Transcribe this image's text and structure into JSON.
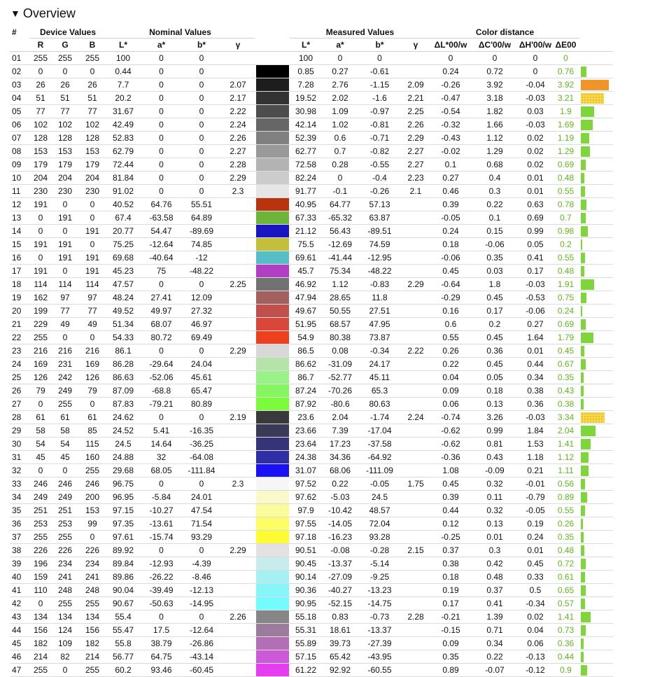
{
  "section": {
    "title": "Overview",
    "toggle_glyph": "▼"
  },
  "headers": {
    "index": "#",
    "device": "Device Values",
    "nominal": "Nominal Values",
    "measured": "Measured Values",
    "distance": "Color distance",
    "R": "R",
    "G": "G",
    "B": "B",
    "L": "L*",
    "a": "a*",
    "b": "b*",
    "gamma": "γ",
    "dL": "ΔL*00/w",
    "dC": "ΔC'00/w",
    "dH": "ΔH'00/w",
    "dE": "ΔE00"
  },
  "status_colors": {
    "green": "#5fb81e",
    "orange": "#f0952a",
    "yellow": "#f4d84a"
  },
  "rows": [
    {
      "id": "01",
      "R": "255",
      "G": "255",
      "B": "255",
      "nL": "100",
      "na": "0",
      "nb": "0",
      "ng": "",
      "sw": "#ffffff",
      "mL": "100",
      "ma": "0",
      "mb": "0",
      "mg": "",
      "dL": "0",
      "dC": "0",
      "dH": "0",
      "dE": "0",
      "bar": 0,
      "barc": "green"
    },
    {
      "id": "02",
      "R": "0",
      "G": "0",
      "B": "0",
      "nL": "0.44",
      "na": "0",
      "nb": "0",
      "ng": "",
      "sw": "#000000",
      "mL": "0.85",
      "ma": "0.27",
      "mb": "-0.61",
      "mg": "",
      "dL": "0.24",
      "dC": "0.72",
      "dH": "0",
      "dE": "0.76",
      "bar": 0.76,
      "barc": "green"
    },
    {
      "id": "03",
      "R": "26",
      "G": "26",
      "B": "26",
      "nL": "7.7",
      "na": "0",
      "nb": "0",
      "ng": "2.07",
      "sw": "#1d1d1d",
      "mL": "7.28",
      "ma": "2.76",
      "mb": "-1.15",
      "mg": "2.09",
      "dL": "-0.26",
      "dC": "3.92",
      "dH": "-0.04",
      "dE": "3.92",
      "bar": 3.92,
      "barc": "orange"
    },
    {
      "id": "04",
      "R": "51",
      "G": "51",
      "B": "51",
      "nL": "20.2",
      "na": "0",
      "nb": "0",
      "ng": "2.17",
      "sw": "#333333",
      "mL": "19.52",
      "ma": "2.02",
      "mb": "-1.6",
      "mg": "2.21",
      "dL": "-0.47",
      "dC": "3.18",
      "dH": "-0.03",
      "dE": "3.21",
      "bar": 3.21,
      "barc": "yellow"
    },
    {
      "id": "05",
      "R": "77",
      "G": "77",
      "B": "77",
      "nL": "31.67",
      "na": "0",
      "nb": "0",
      "ng": "2.22",
      "sw": "#4d4d4d",
      "mL": "30.98",
      "ma": "1.09",
      "mb": "-0.97",
      "mg": "2.25",
      "dL": "-0.54",
      "dC": "1.82",
      "dH": "0.03",
      "dE": "1.9",
      "bar": 1.9,
      "barc": "green"
    },
    {
      "id": "06",
      "R": "102",
      "G": "102",
      "B": "102",
      "nL": "42.49",
      "na": "0",
      "nb": "0",
      "ng": "2.24",
      "sw": "#666666",
      "mL": "42.14",
      "ma": "1.02",
      "mb": "-0.81",
      "mg": "2.26",
      "dL": "-0.32",
      "dC": "1.66",
      "dH": "-0.03",
      "dE": "1.69",
      "bar": 1.69,
      "barc": "green"
    },
    {
      "id": "07",
      "R": "128",
      "G": "128",
      "B": "128",
      "nL": "52.83",
      "na": "0",
      "nb": "0",
      "ng": "2.26",
      "sw": "#808080",
      "mL": "52.39",
      "ma": "0.6",
      "mb": "-0.71",
      "mg": "2.29",
      "dL": "-0.43",
      "dC": "1.12",
      "dH": "0.02",
      "dE": "1.19",
      "bar": 1.19,
      "barc": "green"
    },
    {
      "id": "08",
      "R": "153",
      "G": "153",
      "B": "153",
      "nL": "62.79",
      "na": "0",
      "nb": "0",
      "ng": "2.27",
      "sw": "#999999",
      "mL": "62.77",
      "ma": "0.7",
      "mb": "-0.82",
      "mg": "2.27",
      "dL": "-0.02",
      "dC": "1.29",
      "dH": "0.02",
      "dE": "1.29",
      "bar": 1.29,
      "barc": "green"
    },
    {
      "id": "09",
      "R": "179",
      "G": "179",
      "B": "179",
      "nL": "72.44",
      "na": "0",
      "nb": "0",
      "ng": "2.28",
      "sw": "#b3b3b3",
      "mL": "72.58",
      "ma": "0.28",
      "mb": "-0.55",
      "mg": "2.27",
      "dL": "0.1",
      "dC": "0.68",
      "dH": "0.02",
      "dE": "0.69",
      "bar": 0.69,
      "barc": "green"
    },
    {
      "id": "10",
      "R": "204",
      "G": "204",
      "B": "204",
      "nL": "81.84",
      "na": "0",
      "nb": "0",
      "ng": "2.29",
      "sw": "#cccccc",
      "mL": "82.24",
      "ma": "0",
      "mb": "-0.4",
      "mg": "2.23",
      "dL": "0.27",
      "dC": "0.4",
      "dH": "0.01",
      "dE": "0.48",
      "bar": 0.48,
      "barc": "green"
    },
    {
      "id": "11",
      "R": "230",
      "G": "230",
      "B": "230",
      "nL": "91.02",
      "na": "0",
      "nb": "0",
      "ng": "2.3",
      "sw": "#e6e6e6",
      "mL": "91.77",
      "ma": "-0.1",
      "mb": "-0.26",
      "mg": "2.1",
      "dL": "0.46",
      "dC": "0.3",
      "dH": "0.01",
      "dE": "0.55",
      "bar": 0.55,
      "barc": "green"
    },
    {
      "id": "12",
      "R": "191",
      "G": "0",
      "B": "0",
      "nL": "40.52",
      "na": "64.76",
      "nb": "55.51",
      "ng": "",
      "sw": "#b9330f",
      "mL": "40.95",
      "ma": "64.77",
      "mb": "57.13",
      "mg": "",
      "dL": "0.39",
      "dC": "0.22",
      "dH": "0.63",
      "dE": "0.78",
      "bar": 0.78,
      "barc": "green"
    },
    {
      "id": "13",
      "R": "0",
      "G": "191",
      "B": "0",
      "nL": "67.4",
      "na": "-63.58",
      "nb": "64.89",
      "ng": "",
      "sw": "#6cb43a",
      "mL": "67.33",
      "ma": "-65.32",
      "mb": "63.87",
      "mg": "",
      "dL": "-0.05",
      "dC": "0.1",
      "dH": "0.69",
      "dE": "0.7",
      "bar": 0.7,
      "barc": "green"
    },
    {
      "id": "14",
      "R": "0",
      "G": "0",
      "B": "191",
      "nL": "20.77",
      "na": "54.47",
      "nb": "-89.69",
      "ng": "",
      "sw": "#1a14c2",
      "mL": "21.12",
      "ma": "56.43",
      "mb": "-89.51",
      "mg": "",
      "dL": "0.24",
      "dC": "0.15",
      "dH": "0.99",
      "dE": "0.98",
      "bar": 0.98,
      "barc": "green"
    },
    {
      "id": "15",
      "R": "191",
      "G": "191",
      "B": "0",
      "nL": "75.25",
      "na": "-12.64",
      "nb": "74.85",
      "ng": "",
      "sw": "#c2bf3c",
      "mL": "75.5",
      "ma": "-12.69",
      "mb": "74.59",
      "mg": "",
      "dL": "0.18",
      "dC": "-0.06",
      "dH": "0.05",
      "dE": "0.2",
      "bar": 0.2,
      "barc": "green"
    },
    {
      "id": "16",
      "R": "0",
      "G": "191",
      "B": "191",
      "nL": "69.68",
      "na": "-40.64",
      "nb": "-12",
      "ng": "",
      "sw": "#55bec6",
      "mL": "69.61",
      "ma": "-41.44",
      "mb": "-12.95",
      "mg": "",
      "dL": "-0.06",
      "dC": "0.35",
      "dH": "0.41",
      "dE": "0.55",
      "bar": 0.55,
      "barc": "green"
    },
    {
      "id": "17",
      "R": "191",
      "G": "0",
      "B": "191",
      "nL": "45.23",
      "na": "75",
      "nb": "-48.22",
      "ng": "",
      "sw": "#b13fc4",
      "mL": "45.7",
      "ma": "75.34",
      "mb": "-48.22",
      "mg": "",
      "dL": "0.45",
      "dC": "0.03",
      "dH": "0.17",
      "dE": "0.48",
      "bar": 0.48,
      "barc": "green"
    },
    {
      "id": "18",
      "R": "114",
      "G": "114",
      "B": "114",
      "nL": "47.57",
      "na": "0",
      "nb": "0",
      "ng": "2.25",
      "sw": "#727272",
      "mL": "46.92",
      "ma": "1.12",
      "mb": "-0.83",
      "mg": "2.29",
      "dL": "-0.64",
      "dC": "1.8",
      "dH": "-0.03",
      "dE": "1.91",
      "bar": 1.91,
      "barc": "green"
    },
    {
      "id": "19",
      "R": "162",
      "G": "97",
      "B": "97",
      "nL": "48.24",
      "na": "27.41",
      "nb": "12.09",
      "ng": "",
      "sw": "#a2615f",
      "mL": "47.94",
      "ma": "28.65",
      "mb": "11.8",
      "mg": "",
      "dL": "-0.29",
      "dC": "0.45",
      "dH": "-0.53",
      "dE": "0.75",
      "bar": 0.75,
      "barc": "green"
    },
    {
      "id": "20",
      "R": "199",
      "G": "77",
      "B": "77",
      "nL": "49.52",
      "na": "49.97",
      "nb": "27.32",
      "ng": "",
      "sw": "#c14f4b",
      "mL": "49.67",
      "ma": "50.55",
      "mb": "27.51",
      "mg": "",
      "dL": "0.16",
      "dC": "0.17",
      "dH": "-0.06",
      "dE": "0.24",
      "bar": 0.24,
      "barc": "green"
    },
    {
      "id": "21",
      "R": "229",
      "G": "49",
      "B": "49",
      "nL": "51.34",
      "na": "68.07",
      "nb": "46.97",
      "ng": "",
      "sw": "#d8483a",
      "mL": "51.95",
      "ma": "68.57",
      "mb": "47.95",
      "mg": "",
      "dL": "0.6",
      "dC": "0.2",
      "dH": "0.27",
      "dE": "0.69",
      "bar": 0.69,
      "barc": "green"
    },
    {
      "id": "22",
      "R": "255",
      "G": "0",
      "B": "0",
      "nL": "54.33",
      "na": "80.72",
      "nb": "69.49",
      "ng": "",
      "sw": "#ee3f1f",
      "mL": "54.9",
      "ma": "80.38",
      "mb": "73.87",
      "mg": "",
      "dL": "0.55",
      "dC": "0.45",
      "dH": "1.64",
      "dE": "1.79",
      "bar": 1.79,
      "barc": "green"
    },
    {
      "id": "23",
      "R": "216",
      "G": "216",
      "B": "216",
      "nL": "86.1",
      "na": "0",
      "nb": "0",
      "ng": "2.29",
      "sw": "#d8d8d8",
      "mL": "86.5",
      "ma": "0.08",
      "mb": "-0.34",
      "mg": "2.22",
      "dL": "0.26",
      "dC": "0.36",
      "dH": "0.01",
      "dE": "0.45",
      "bar": 0.45,
      "barc": "green"
    },
    {
      "id": "24",
      "R": "169",
      "G": "231",
      "B": "169",
      "nL": "86.28",
      "na": "-29.64",
      "nb": "24.04",
      "ng": "",
      "sw": "#b6e3aa",
      "mL": "86.62",
      "ma": "-31.09",
      "mb": "24.17",
      "mg": "",
      "dL": "0.22",
      "dC": "0.45",
      "dH": "0.44",
      "dE": "0.67",
      "bar": 0.67,
      "barc": "green"
    },
    {
      "id": "25",
      "R": "126",
      "G": "242",
      "B": "126",
      "nL": "86.63",
      "na": "-52.06",
      "nb": "45.61",
      "ng": "",
      "sw": "#9af18a",
      "mL": "86.7",
      "ma": "-52.77",
      "mb": "45.11",
      "mg": "",
      "dL": "0.04",
      "dC": "0.05",
      "dH": "0.34",
      "dE": "0.35",
      "bar": 0.35,
      "barc": "green"
    },
    {
      "id": "26",
      "R": "79",
      "G": "249",
      "B": "79",
      "nL": "87.09",
      "na": "-68.8",
      "nb": "65.47",
      "ng": "",
      "sw": "#84f75f",
      "mL": "87.24",
      "ma": "-70.26",
      "mb": "65.3",
      "mg": "",
      "dL": "0.09",
      "dC": "0.18",
      "dH": "0.38",
      "dE": "0.43",
      "bar": 0.43,
      "barc": "green"
    },
    {
      "id": "27",
      "R": "0",
      "G": "255",
      "B": "0",
      "nL": "87.83",
      "na": "-79.21",
      "nb": "80.89",
      "ng": "",
      "sw": "#7cfa3c",
      "mL": "87.92",
      "ma": "-80.6",
      "mb": "80.63",
      "mg": "",
      "dL": "0.06",
      "dC": "0.13",
      "dH": "0.36",
      "dE": "0.38",
      "bar": 0.38,
      "barc": "green"
    },
    {
      "id": "28",
      "R": "61",
      "G": "61",
      "B": "61",
      "nL": "24.62",
      "na": "0",
      "nb": "0",
      "ng": "2.19",
      "sw": "#3a3a3c",
      "mL": "23.6",
      "ma": "2.04",
      "mb": "-1.74",
      "mg": "2.24",
      "dL": "-0.74",
      "dC": "3.26",
      "dH": "-0.03",
      "dE": "3.34",
      "bar": 3.34,
      "barc": "yellow"
    },
    {
      "id": "29",
      "R": "58",
      "G": "58",
      "B": "85",
      "nL": "24.52",
      "na": "5.41",
      "nb": "-16.35",
      "ng": "",
      "sw": "#3a3a57",
      "mL": "23.66",
      "ma": "7.39",
      "mb": "-17.04",
      "mg": "",
      "dL": "-0.62",
      "dC": "0.99",
      "dH": "1.84",
      "dE": "2.04",
      "bar": 2.04,
      "barc": "green"
    },
    {
      "id": "30",
      "R": "54",
      "G": "54",
      "B": "115",
      "nL": "24.5",
      "na": "14.64",
      "nb": "-36.25",
      "ng": "",
      "sw": "#363478",
      "mL": "23.64",
      "ma": "17.23",
      "mb": "-37.58",
      "mg": "",
      "dL": "-0.62",
      "dC": "0.81",
      "dH": "1.53",
      "dE": "1.41",
      "bar": 1.41,
      "barc": "green"
    },
    {
      "id": "31",
      "R": "45",
      "G": "45",
      "B": "160",
      "nL": "24.88",
      "na": "32",
      "nb": "-64.08",
      "ng": "",
      "sw": "#2e2ea5",
      "mL": "24.38",
      "ma": "34.36",
      "mb": "-64.92",
      "mg": "",
      "dL": "-0.36",
      "dC": "0.43",
      "dH": "1.18",
      "dE": "1.12",
      "bar": 1.12,
      "barc": "green"
    },
    {
      "id": "32",
      "R": "0",
      "G": "0",
      "B": "255",
      "nL": "29.68",
      "na": "68.05",
      "nb": "-111.84",
      "ng": "",
      "sw": "#1a10f5",
      "mL": "31.07",
      "ma": "68.06",
      "mb": "-111.09",
      "mg": "",
      "dL": "1.08",
      "dC": "-0.09",
      "dH": "0.21",
      "dE": "1.11",
      "bar": 1.11,
      "barc": "green"
    },
    {
      "id": "33",
      "R": "246",
      "G": "246",
      "B": "246",
      "nL": "96.75",
      "na": "0",
      "nb": "0",
      "ng": "2.3",
      "sw": "#f6f6f6",
      "mL": "97.52",
      "ma": "0.22",
      "mb": "-0.05",
      "mg": "1.75",
      "dL": "0.45",
      "dC": "0.32",
      "dH": "-0.01",
      "dE": "0.56",
      "bar": 0.56,
      "barc": "green"
    },
    {
      "id": "34",
      "R": "249",
      "G": "249",
      "B": "200",
      "nL": "96.95",
      "na": "-5.84",
      "nb": "24.01",
      "ng": "",
      "sw": "#fbf9c9",
      "mL": "97.62",
      "ma": "-5.03",
      "mb": "24.5",
      "mg": "",
      "dL": "0.39",
      "dC": "0.11",
      "dH": "-0.79",
      "dE": "0.89",
      "bar": 0.89,
      "barc": "green"
    },
    {
      "id": "35",
      "R": "251",
      "G": "251",
      "B": "153",
      "nL": "97.15",
      "na": "-10.27",
      "nb": "47.54",
      "ng": "",
      "sw": "#fbfb9d",
      "mL": "97.9",
      "ma": "-10.42",
      "mb": "48.57",
      "mg": "",
      "dL": "0.44",
      "dC": "0.32",
      "dH": "-0.05",
      "dE": "0.55",
      "bar": 0.55,
      "barc": "green"
    },
    {
      "id": "36",
      "R": "253",
      "G": "253",
      "B": "99",
      "nL": "97.35",
      "na": "-13.61",
      "nb": "71.54",
      "ng": "",
      "sw": "#fdfd66",
      "mL": "97.55",
      "ma": "-14.05",
      "mb": "72.04",
      "mg": "",
      "dL": "0.12",
      "dC": "0.13",
      "dH": "0.19",
      "dE": "0.26",
      "bar": 0.26,
      "barc": "green"
    },
    {
      "id": "37",
      "R": "255",
      "G": "255",
      "B": "0",
      "nL": "97.61",
      "na": "-15.74",
      "nb": "93.29",
      "ng": "",
      "sw": "#fdfc34",
      "mL": "97.18",
      "ma": "-16.23",
      "mb": "93.28",
      "mg": "",
      "dL": "-0.25",
      "dC": "0.01",
      "dH": "0.24",
      "dE": "0.35",
      "bar": 0.35,
      "barc": "green"
    },
    {
      "id": "38",
      "R": "226",
      "G": "226",
      "B": "226",
      "nL": "89.92",
      "na": "0",
      "nb": "0",
      "ng": "2.29",
      "sw": "#e2e2e2",
      "mL": "90.51",
      "ma": "-0.08",
      "mb": "-0.28",
      "mg": "2.15",
      "dL": "0.37",
      "dC": "0.3",
      "dH": "0.01",
      "dE": "0.48",
      "bar": 0.48,
      "barc": "green"
    },
    {
      "id": "39",
      "R": "196",
      "G": "234",
      "B": "234",
      "nL": "89.84",
      "na": "-12.93",
      "nb": "-4.39",
      "ng": "",
      "sw": "#c8ebec",
      "mL": "90.45",
      "ma": "-13.37",
      "mb": "-5.14",
      "mg": "",
      "dL": "0.38",
      "dC": "0.42",
      "dH": "0.45",
      "dE": "0.72",
      "bar": 0.72,
      "barc": "green"
    },
    {
      "id": "40",
      "R": "159",
      "G": "241",
      "B": "241",
      "nL": "89.86",
      "na": "-26.22",
      "nb": "-8.46",
      "ng": "",
      "sw": "#a5f0f2",
      "mL": "90.14",
      "ma": "-27.09",
      "mb": "-9.25",
      "mg": "",
      "dL": "0.18",
      "dC": "0.48",
      "dH": "0.33",
      "dE": "0.61",
      "bar": 0.61,
      "barc": "green"
    },
    {
      "id": "41",
      "R": "110",
      "G": "248",
      "B": "248",
      "nL": "90.04",
      "na": "-39.49",
      "nb": "-12.13",
      "ng": "",
      "sw": "#86f6f8",
      "mL": "90.36",
      "ma": "-40.27",
      "mb": "-13.23",
      "mg": "",
      "dL": "0.19",
      "dC": "0.37",
      "dH": "0.5",
      "dE": "0.65",
      "bar": 0.65,
      "barc": "green"
    },
    {
      "id": "42",
      "R": "0",
      "G": "255",
      "B": "255",
      "nL": "90.67",
      "na": "-50.63",
      "nb": "-14.95",
      "ng": "",
      "sw": "#74fbfd",
      "mL": "90.95",
      "ma": "-52.15",
      "mb": "-14.75",
      "mg": "",
      "dL": "0.17",
      "dC": "0.41",
      "dH": "-0.34",
      "dE": "0.57",
      "bar": 0.57,
      "barc": "green"
    },
    {
      "id": "43",
      "R": "134",
      "G": "134",
      "B": "134",
      "nL": "55.4",
      "na": "0",
      "nb": "0",
      "ng": "2.26",
      "sw": "#868686",
      "mL": "55.18",
      "ma": "0.83",
      "mb": "-0.73",
      "mg": "2.28",
      "dL": "-0.21",
      "dC": "1.39",
      "dH": "0.02",
      "dE": "1.41",
      "bar": 1.41,
      "barc": "green"
    },
    {
      "id": "44",
      "R": "156",
      "G": "124",
      "B": "156",
      "nL": "55.47",
      "na": "17.5",
      "nb": "-12.64",
      "ng": "",
      "sw": "#9b7c9d",
      "mL": "55.31",
      "ma": "18.61",
      "mb": "-13.37",
      "mg": "",
      "dL": "-0.15",
      "dC": "0.71",
      "dH": "0.04",
      "dE": "0.73",
      "bar": 0.73,
      "barc": "green"
    },
    {
      "id": "45",
      "R": "182",
      "G": "109",
      "B": "182",
      "nL": "55.8",
      "na": "38.79",
      "nb": "-26.86",
      "ng": "",
      "sw": "#b26fb6",
      "mL": "55.89",
      "ma": "39.73",
      "mb": "-27.39",
      "mg": "",
      "dL": "0.09",
      "dC": "0.34",
      "dH": "0.06",
      "dE": "0.36",
      "bar": 0.36,
      "barc": "green"
    },
    {
      "id": "46",
      "R": "214",
      "G": "82",
      "B": "214",
      "nL": "56.77",
      "na": "64.75",
      "nb": "-43.14",
      "ng": "",
      "sw": "#cc5ad8",
      "mL": "57.15",
      "ma": "65.42",
      "mb": "-43.95",
      "mg": "",
      "dL": "0.35",
      "dC": "0.22",
      "dH": "-0.13",
      "dE": "0.44",
      "bar": 0.44,
      "barc": "green"
    },
    {
      "id": "47",
      "R": "255",
      "G": "0",
      "B": "255",
      "nL": "60.2",
      "na": "93.46",
      "nb": "-60.45",
      "ng": "",
      "sw": "#e43ef0",
      "mL": "61.22",
      "ma": "92.92",
      "mb": "-60.55",
      "mg": "",
      "dL": "0.89",
      "dC": "-0.07",
      "dH": "-0.12",
      "dE": "0.9",
      "bar": 0.9,
      "barc": "green"
    }
  ]
}
